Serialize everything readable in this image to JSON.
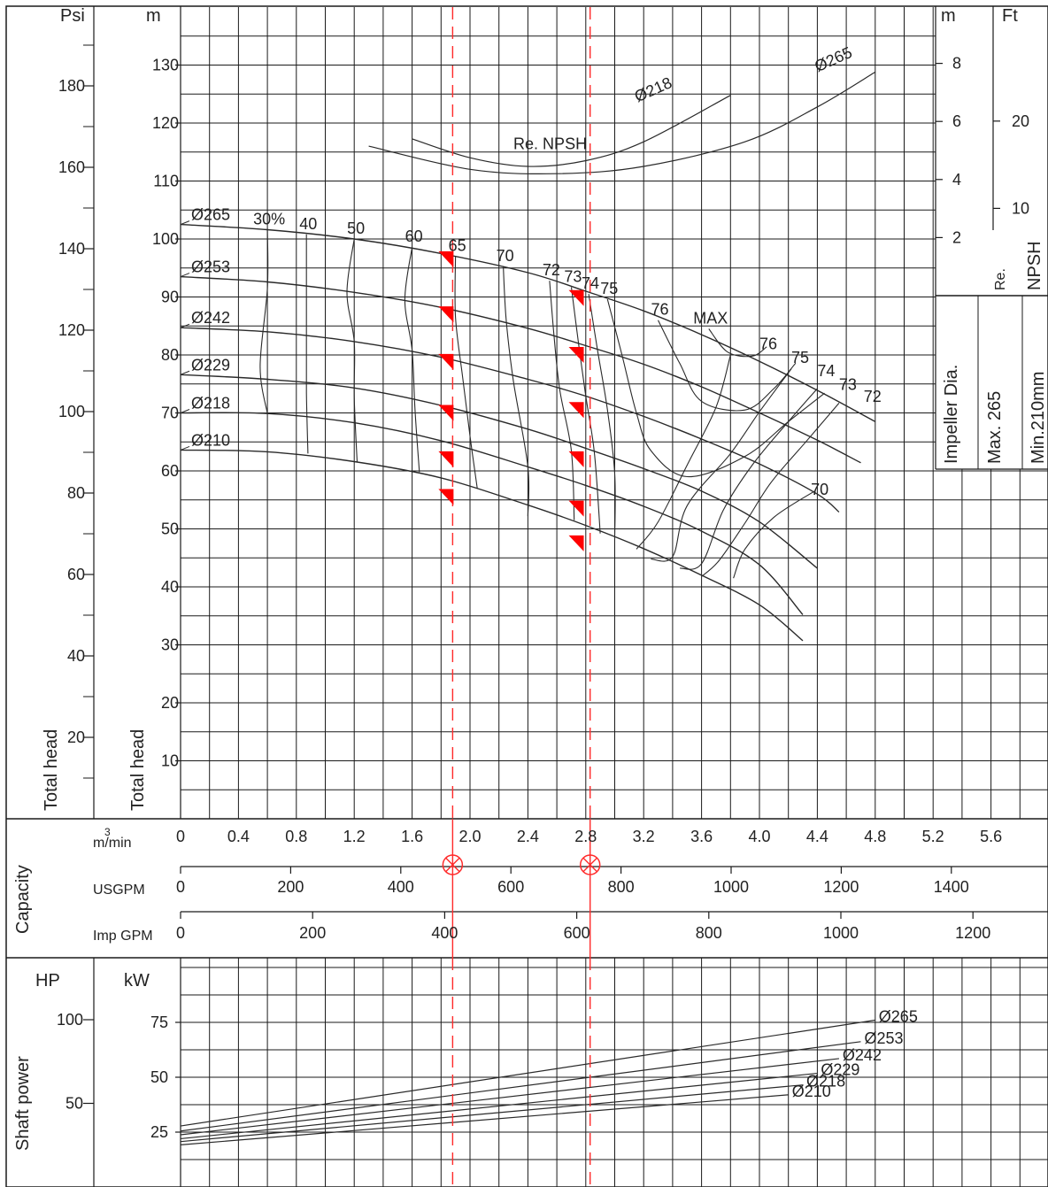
{
  "colors": {
    "grid": "#1a1a1a",
    "curve": "#2a2a2a",
    "marker": "#ff0000",
    "guide": "#ff2a2a"
  },
  "head_panel": {
    "units": {
      "psi": "Psi",
      "m": "m",
      "npsh_m": "m",
      "npsh_ft": "Ft"
    },
    "axis_titles": {
      "psi": "Total head",
      "m": "Total head",
      "npsh_re": "Re.",
      "npsh": "NPSH",
      "impeller": "Impeller Dia.",
      "max": "Max. 265",
      "min": "Min.210mm"
    }
  },
  "capacity_panel": {
    "title": "Capacity",
    "rows": {
      "m3": "m/min",
      "m3_sup": "3",
      "usgpm": "USGPM",
      "impgpm": "Imp GPM"
    }
  },
  "power_panel": {
    "title": "Shaft power",
    "units": {
      "hp": "HP",
      "kw": "kW"
    }
  },
  "chart_data": {
    "type": "line",
    "x_unit": "m3/min",
    "xlim": [
      0,
      6.0
    ],
    "x_ticks": [
      {
        "v": 0,
        "t": "0"
      },
      {
        "v": 0.4,
        "t": "0.4"
      },
      {
        "v": 0.8,
        "t": "0.8"
      },
      {
        "v": 1.2,
        "t": "1.2"
      },
      {
        "v": 1.6,
        "t": "1.6"
      },
      {
        "v": 2.0,
        "t": "2.0"
      },
      {
        "v": 2.4,
        "t": "2.4"
      },
      {
        "v": 2.8,
        "t": "2.8"
      },
      {
        "v": 3.2,
        "t": "3.2"
      },
      {
        "v": 3.6,
        "t": "3.6"
      },
      {
        "v": 4.0,
        "t": "4.0"
      },
      {
        "v": 4.4,
        "t": "4.4"
      },
      {
        "v": 4.8,
        "t": "4.8"
      },
      {
        "v": 5.2,
        "t": "5.2"
      },
      {
        "v": 5.6,
        "t": "5.6"
      }
    ],
    "usgpm_ticks": [
      {
        "v": 0,
        "t": "0"
      },
      {
        "v": 200,
        "t": "200"
      },
      {
        "v": 400,
        "t": "400"
      },
      {
        "v": 600,
        "t": "600"
      },
      {
        "v": 800,
        "t": "800"
      },
      {
        "v": 1000,
        "t": "1000"
      },
      {
        "v": 1200,
        "t": "1200"
      },
      {
        "v": 1400,
        "t": "1400"
      }
    ],
    "impgpm_ticks": [
      {
        "v": 0,
        "t": "0"
      },
      {
        "v": 200,
        "t": "200"
      },
      {
        "v": 400,
        "t": "400"
      },
      {
        "v": 600,
        "t": "600"
      },
      {
        "v": 800,
        "t": "800"
      },
      {
        "v": 1000,
        "t": "1000"
      },
      {
        "v": 1200,
        "t": "1200"
      }
    ],
    "head_m_ticks": [
      {
        "v": 10,
        "t": "10"
      },
      {
        "v": 20,
        "t": "20"
      },
      {
        "v": 30,
        "t": "30"
      },
      {
        "v": 40,
        "t": "40"
      },
      {
        "v": 50,
        "t": "50"
      },
      {
        "v": 60,
        "t": "60"
      },
      {
        "v": 70,
        "t": "70"
      },
      {
        "v": 80,
        "t": "80"
      },
      {
        "v": 90,
        "t": "90"
      },
      {
        "v": 100,
        "t": "100"
      },
      {
        "v": 110,
        "t": "110"
      },
      {
        "v": 120,
        "t": "120"
      },
      {
        "v": 130,
        "t": "130"
      }
    ],
    "head_psi_ticks": [
      {
        "v": 20,
        "t": "20"
      },
      {
        "v": 40,
        "t": "40"
      },
      {
        "v": 60,
        "t": "60"
      },
      {
        "v": 80,
        "t": "80"
      },
      {
        "v": 100,
        "t": "100"
      },
      {
        "v": 120,
        "t": "120"
      },
      {
        "v": 140,
        "t": "140"
      },
      {
        "v": 160,
        "t": "160"
      },
      {
        "v": 180,
        "t": "180"
      }
    ],
    "npsh_m_ticks": [
      {
        "v": 2,
        "t": "2"
      },
      {
        "v": 4,
        "t": "4"
      },
      {
        "v": 6,
        "t": "6"
      },
      {
        "v": 8,
        "t": "8"
      }
    ],
    "npsh_ft_ticks": [
      {
        "v": 10,
        "t": "10"
      },
      {
        "v": 20,
        "t": "20"
      }
    ],
    "power_kw_ticks": [
      {
        "v": 25,
        "t": "25"
      },
      {
        "v": 50,
        "t": "50"
      },
      {
        "v": 75,
        "t": "75"
      }
    ],
    "power_hp_ticks": [
      {
        "v": 50,
        "t": "50"
      },
      {
        "v": 100,
        "t": "100"
      }
    ],
    "head_curves": [
      {
        "name": "Ø265",
        "points": [
          [
            0,
            102.5
          ],
          [
            0.6,
            101.6
          ],
          [
            1.2,
            100
          ],
          [
            1.8,
            97.5
          ],
          [
            2.4,
            94.2
          ],
          [
            2.8,
            91.0
          ],
          [
            3.2,
            87.6
          ],
          [
            3.6,
            83.5
          ],
          [
            4.0,
            78.9
          ],
          [
            4.4,
            73.9
          ],
          [
            4.8,
            68.5
          ]
        ]
      },
      {
        "name": "Ø253",
        "points": [
          [
            0,
            93.5
          ],
          [
            0.6,
            92.6
          ],
          [
            1.2,
            90.8
          ],
          [
            1.8,
            88.2
          ],
          [
            2.4,
            84.6
          ],
          [
            2.8,
            81.6
          ],
          [
            3.2,
            78.4
          ],
          [
            3.6,
            74.5
          ],
          [
            4.0,
            70.0
          ],
          [
            4.4,
            65.3
          ],
          [
            4.7,
            61.4
          ]
        ]
      },
      {
        "name": "Ø242",
        "points": [
          [
            0,
            84.7
          ],
          [
            0.6,
            84.0
          ],
          [
            1.2,
            82.3
          ],
          [
            1.8,
            79.6
          ],
          [
            2.4,
            75.8
          ],
          [
            2.8,
            72.9
          ],
          [
            3.2,
            69.4
          ],
          [
            3.6,
            65.5
          ],
          [
            4.0,
            61.2
          ],
          [
            4.4,
            56.0
          ],
          [
            4.55,
            52.9
          ]
        ]
      },
      {
        "name": "Ø229",
        "points": [
          [
            0,
            76.6
          ],
          [
            0.6,
            75.8
          ],
          [
            1.2,
            74.3
          ],
          [
            1.8,
            71.3
          ],
          [
            2.4,
            67.2
          ],
          [
            2.8,
            63.9
          ],
          [
            3.2,
            60.4
          ],
          [
            3.6,
            56.5
          ],
          [
            4.0,
            51.2
          ],
          [
            4.4,
            43.2
          ]
        ]
      },
      {
        "name": "Ø218",
        "points": [
          [
            0,
            70.0
          ],
          [
            0.6,
            69.9
          ],
          [
            1.2,
            68.3
          ],
          [
            1.8,
            65.2
          ],
          [
            2.4,
            60.7
          ],
          [
            2.8,
            57.5
          ],
          [
            3.2,
            53.9
          ],
          [
            3.6,
            49.6
          ],
          [
            4.0,
            43.8
          ],
          [
            4.3,
            35.2
          ]
        ]
      },
      {
        "name": "Ø210",
        "points": [
          [
            0,
            63.6
          ],
          [
            0.6,
            63.3
          ],
          [
            1.2,
            61.6
          ],
          [
            1.8,
            58.8
          ],
          [
            2.4,
            54.1
          ],
          [
            2.8,
            50.6
          ],
          [
            3.2,
            46.6
          ],
          [
            3.6,
            42.0
          ],
          [
            4.0,
            36.9
          ],
          [
            4.3,
            30.7
          ]
        ]
      }
    ],
    "npsh_curves": [
      {
        "name": "Ø218",
        "points": [
          [
            1.6,
            5.4
          ],
          [
            2.0,
            4.75
          ],
          [
            2.4,
            4.45
          ],
          [
            2.8,
            4.65
          ],
          [
            3.2,
            5.3
          ],
          [
            3.8,
            6.9
          ]
        ]
      },
      {
        "name": "Ø265",
        "points": [
          [
            1.3,
            5.15
          ],
          [
            2.0,
            4.35
          ],
          [
            2.6,
            4.2
          ],
          [
            3.2,
            4.45
          ],
          [
            3.9,
            5.3
          ],
          [
            4.4,
            6.5
          ],
          [
            4.8,
            7.7
          ]
        ]
      }
    ],
    "npsh_labels": [
      "Re. NPSH"
    ],
    "efficiency_lines": [
      {
        "label": "30%",
        "points": [
          [
            0.6,
            101.6
          ],
          [
            0.6,
            91.5
          ],
          [
            0.55,
            78
          ],
          [
            0.6,
            69.9
          ]
        ]
      },
      {
        "label": "40",
        "points": [
          [
            0.87,
            100.8
          ],
          [
            0.87,
            91.7
          ],
          [
            0.87,
            83.2
          ],
          [
            0.87,
            73.5
          ],
          [
            0.88,
            63.0
          ]
        ]
      },
      {
        "label": "50",
        "points": [
          [
            1.2,
            100
          ],
          [
            1.15,
            90.8
          ],
          [
            1.2,
            82.3
          ],
          [
            1.2,
            72.8
          ],
          [
            1.22,
            61.5
          ]
        ]
      },
      {
        "label": "60",
        "points": [
          [
            1.6,
            98.6
          ],
          [
            1.55,
            89.5
          ],
          [
            1.6,
            80.8
          ],
          [
            1.62,
            70.5
          ],
          [
            1.65,
            59.8
          ]
        ]
      },
      {
        "label": "65",
        "points": [
          [
            1.9,
            97.0
          ],
          [
            1.9,
            86.5
          ],
          [
            1.95,
            76.0
          ],
          [
            2.0,
            66.0
          ],
          [
            2.05,
            57.0
          ]
        ]
      },
      {
        "label": "70",
        "points": [
          [
            2.23,
            95.3
          ],
          [
            2.25,
            86.0
          ],
          [
            2.3,
            75.5
          ],
          [
            2.4,
            60.7
          ],
          [
            2.4,
            52.2
          ]
        ]
      },
      {
        "label": "72",
        "points": [
          [
            2.55,
            92.8
          ],
          [
            2.58,
            83.5
          ],
          [
            2.62,
            74.0
          ],
          [
            2.7,
            63.5
          ],
          [
            2.72,
            51.5
          ]
        ]
      },
      {
        "label": "73",
        "points": [
          [
            2.7,
            91.7
          ],
          [
            2.75,
            82.0
          ],
          [
            2.8,
            72.9
          ],
          [
            2.86,
            63.0
          ],
          [
            2.9,
            49.2
          ]
        ]
      },
      {
        "label": "74",
        "points": [
          [
            2.82,
            90.5
          ],
          [
            2.88,
            81.0
          ],
          [
            2.95,
            70.5
          ],
          [
            3.0,
            59.5
          ],
          [
            3.0,
            48.2
          ]
        ]
      },
      {
        "label": "75",
        "points": [
          [
            2.95,
            89.6
          ],
          [
            3.05,
            80.0
          ],
          [
            3.15,
            70.0
          ],
          [
            3.25,
            63.5
          ],
          [
            3.5,
            59.0
          ],
          [
            3.9,
            62.5
          ],
          [
            4.2,
            68.5
          ],
          [
            4.45,
            73.4
          ]
        ]
      },
      {
        "label": "76",
        "points": [
          [
            3.3,
            86.0
          ],
          [
            3.45,
            78.5
          ],
          [
            3.6,
            72.0
          ],
          [
            3.9,
            70.5
          ],
          [
            4.1,
            74.2
          ],
          [
            4.25,
            78.6
          ]
        ]
      },
      {
        "label": "MAX",
        "points": [
          [
            3.65,
            84.5
          ],
          [
            3.78,
            80.5
          ],
          [
            3.95,
            79.8
          ],
          [
            4.05,
            81.4
          ]
        ]
      },
      {
        "label": "",
        "points": [
          [
            3.8,
            80.0
          ],
          [
            3.7,
            71.0
          ],
          [
            3.5,
            61.0
          ],
          [
            3.3,
            51.2
          ],
          [
            3.15,
            46.5
          ]
        ]
      },
      {
        "label": "",
        "points": [
          [
            4.22,
            77.6
          ],
          [
            4.0,
            70.2
          ],
          [
            3.8,
            63.0
          ],
          [
            3.5,
            54.0
          ],
          [
            3.4,
            45.2
          ],
          [
            3.25,
            44.8
          ]
        ]
      },
      {
        "label": "",
        "points": [
          [
            4.4,
            74.2
          ],
          [
            4.2,
            68.5
          ],
          [
            3.95,
            61.0
          ],
          [
            3.75,
            53.2
          ],
          [
            3.6,
            44.0
          ],
          [
            3.45,
            43.2
          ]
        ]
      },
      {
        "label": "",
        "points": [
          [
            4.55,
            71.7
          ],
          [
            4.32,
            65.0
          ],
          [
            4.08,
            58.0
          ],
          [
            3.9,
            51.0
          ],
          [
            3.72,
            44.5
          ],
          [
            3.6,
            41.8
          ]
        ]
      },
      {
        "label": "70",
        "points": [
          [
            4.38,
            56.5
          ],
          [
            4.1,
            52.0
          ],
          [
            3.9,
            46.5
          ],
          [
            3.82,
            41.5
          ]
        ]
      }
    ],
    "efficiency_extra_labels": [
      {
        "t": "76",
        "x": 4.0,
        "y": 81.0
      },
      {
        "t": "75",
        "x": 4.22,
        "y": 78.6
      },
      {
        "t": "74",
        "x": 4.4,
        "y": 76.3
      },
      {
        "t": "73",
        "x": 4.55,
        "y": 74.0
      },
      {
        "t": "72",
        "x": 4.72,
        "y": 71.9
      }
    ],
    "power_curves": [
      {
        "name": "Ø265",
        "kw": [
          27.8,
          76.0
        ],
        "x_end": 4.8
      },
      {
        "name": "Ø253",
        "kw": [
          25.5,
          66.2
        ],
        "x_end": 4.7
      },
      {
        "name": "Ø242",
        "kw": [
          23.8,
          58.5
        ],
        "x_end": 4.55
      },
      {
        "name": "Ø229",
        "kw": [
          22.0,
          51.8
        ],
        "x_end": 4.4
      },
      {
        "name": "Ø218",
        "kw": [
          20.7,
          46.5
        ],
        "x_end": 4.3
      },
      {
        "name": "Ø210",
        "kw": [
          19.2,
          42.0
        ],
        "x_end": 4.2
      }
    ],
    "operating_points": [
      {
        "x": 1.88,
        "heads": [
          96.5,
          87.0,
          78.8,
          70.0,
          62.0,
          55.5
        ]
      },
      {
        "x": 2.78,
        "heads": [
          89.8,
          80.0,
          70.5,
          62.0,
          53.5,
          47.5
        ]
      }
    ],
    "guide_lines": [
      1.88,
      2.83
    ]
  }
}
